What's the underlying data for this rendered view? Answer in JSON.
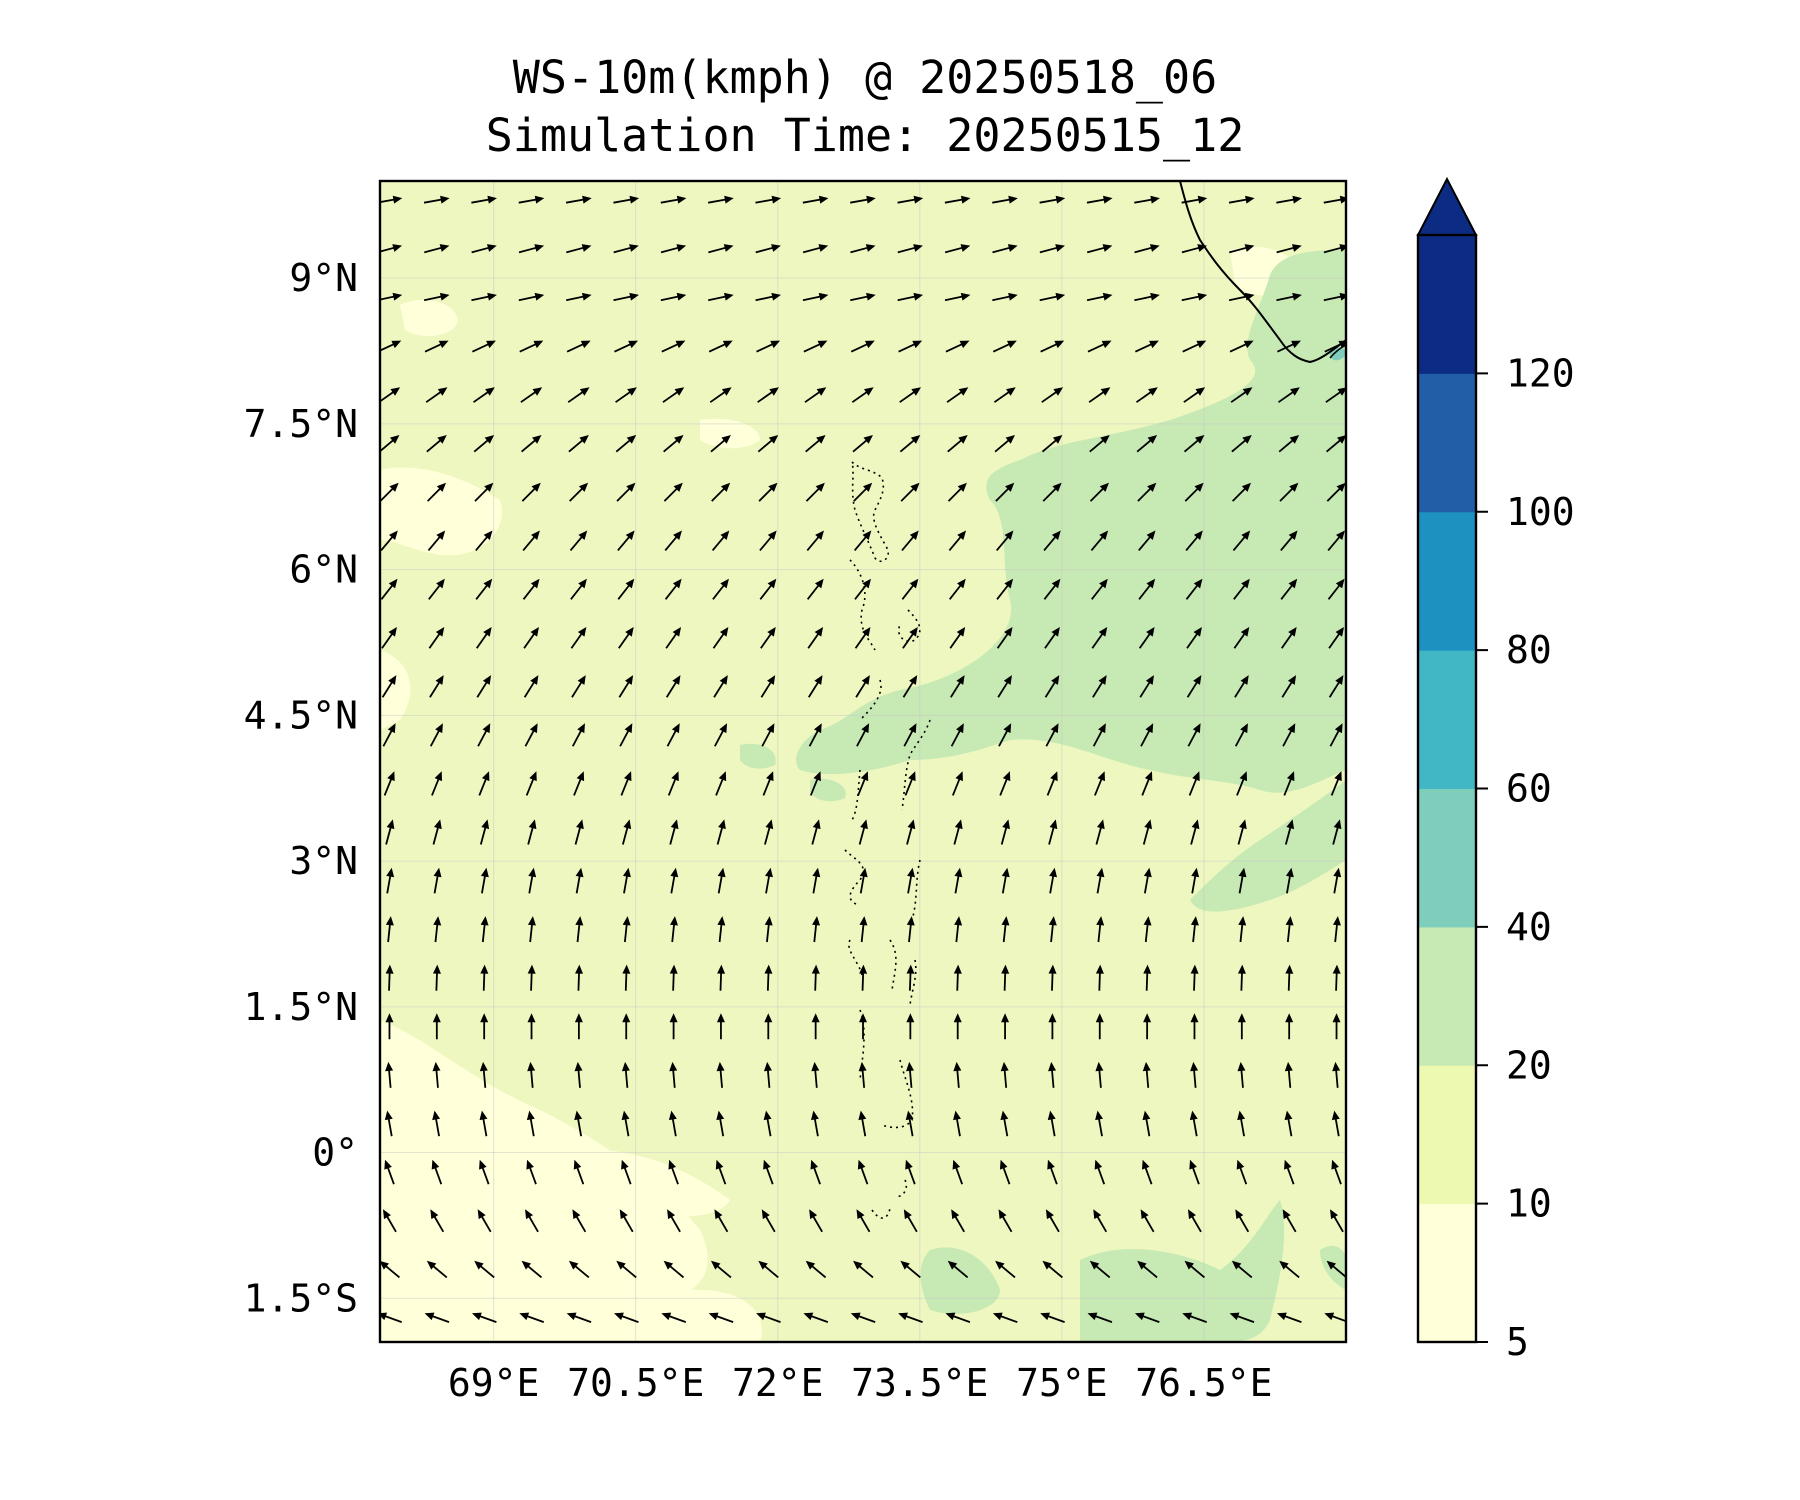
{
  "title": "WS-10m(kmph) @ 20250518_06",
  "subtitle": "Simulation Time: 20250515_12",
  "map": {
    "lon_range": [
      67.8,
      78.0
    ],
    "lat_range": [
      -1.95,
      10.0
    ],
    "x_ticks": [
      {
        "value": 69,
        "label": "69°E"
      },
      {
        "value": 70.5,
        "label": "70.5°E"
      },
      {
        "value": 72,
        "label": "72°E"
      },
      {
        "value": 73.5,
        "label": "73.5°E"
      },
      {
        "value": 75,
        "label": "75°E"
      },
      {
        "value": 76.5,
        "label": "76.5°E"
      }
    ],
    "y_ticks": [
      {
        "value": 9,
        "label": "9°N"
      },
      {
        "value": 7.5,
        "label": "7.5°N"
      },
      {
        "value": 6,
        "label": "6°N"
      },
      {
        "value": 4.5,
        "label": "4.5°N"
      },
      {
        "value": 3,
        "label": "3°N"
      },
      {
        "value": 1.5,
        "label": "1.5°N"
      },
      {
        "value": 0,
        "label": "0°"
      },
      {
        "value": -1.5,
        "label": "1.5°S"
      }
    ],
    "background_color": "#eef7c0",
    "grid": true
  },
  "colorbar": {
    "levels": [
      5,
      10,
      20,
      40,
      60,
      80,
      100,
      120
    ],
    "colors": [
      "#ffffd9",
      "#edf8b1",
      "#c7e9b4",
      "#7fcdbb",
      "#41b6c4",
      "#1d91c0",
      "#225ea8",
      "#0c2c84"
    ],
    "extend": "max",
    "labels": [
      "5",
      "10",
      "20",
      "40",
      "60",
      "80",
      "100",
      "120"
    ]
  },
  "wind_field": {
    "rows": [
      {
        "lat": 9.8,
        "dir": 80
      },
      {
        "lat": 9.3,
        "dir": 75
      },
      {
        "lat": 8.8,
        "dir": 78
      },
      {
        "lat": 8.3,
        "dir": 65
      },
      {
        "lat": 7.8,
        "dir": 55
      },
      {
        "lat": 7.3,
        "dir": 50
      },
      {
        "lat": 6.8,
        "dir": 45
      },
      {
        "lat": 6.3,
        "dir": 40
      },
      {
        "lat": 5.8,
        "dir": 38
      },
      {
        "lat": 5.3,
        "dir": 35
      },
      {
        "lat": 4.8,
        "dir": 32
      },
      {
        "lat": 4.3,
        "dir": 28
      },
      {
        "lat": 3.8,
        "dir": 22
      },
      {
        "lat": 3.3,
        "dir": 15
      },
      {
        "lat": 2.8,
        "dir": 10
      },
      {
        "lat": 2.3,
        "dir": 6
      },
      {
        "lat": 1.8,
        "dir": 2
      },
      {
        "lat": 1.3,
        "dir": 0
      },
      {
        "lat": 0.8,
        "dir": 355
      },
      {
        "lat": 0.3,
        "dir": 350
      },
      {
        "lat": -0.2,
        "dir": 340
      },
      {
        "lat": -0.7,
        "dir": 330
      },
      {
        "lat": -1.2,
        "dir": 310
      },
      {
        "lat": -1.7,
        "dir": 290
      }
    ],
    "lons": [
      67.9,
      68.4,
      68.9,
      69.4,
      69.9,
      70.4,
      70.9,
      71.4,
      71.9,
      72.4,
      72.9,
      73.4,
      73.9,
      74.4,
      74.9,
      75.4,
      75.9,
      76.4,
      76.9,
      77.4,
      77.9
    ]
  }
}
